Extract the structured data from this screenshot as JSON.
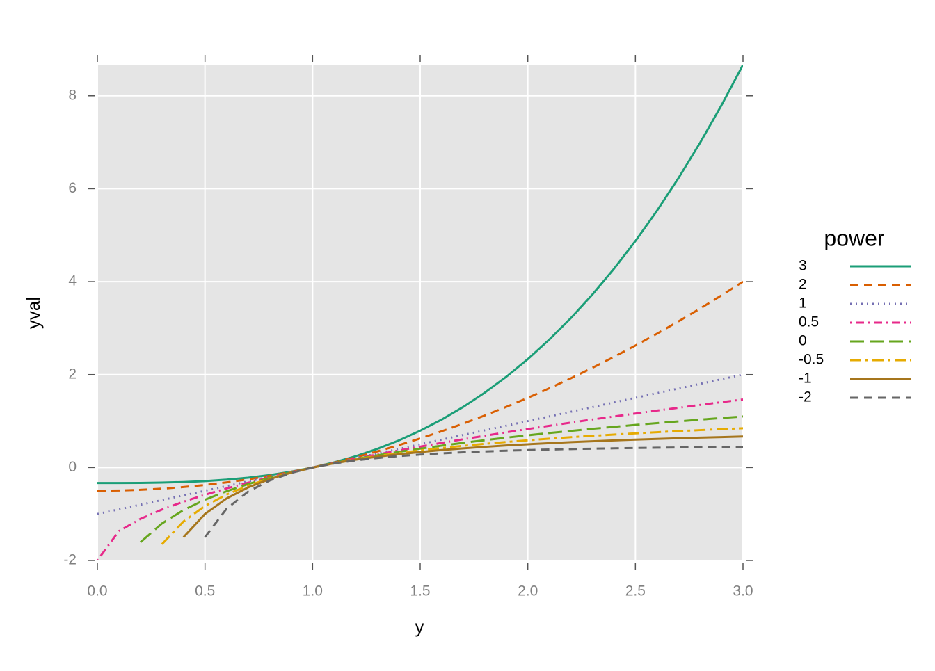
{
  "chart_data": {
    "type": "line",
    "x_label": "y",
    "y_label": "yval",
    "legend_title": "power",
    "x": [
      0,
      0.1,
      0.2,
      0.3,
      0.4,
      0.5,
      0.6,
      0.7,
      0.8,
      0.9,
      1.0,
      1.1,
      1.2,
      1.3,
      1.4,
      1.5,
      1.6,
      1.7,
      1.8,
      1.9,
      2.0,
      2.1,
      2.2,
      2.3,
      2.4,
      2.5,
      2.6,
      2.7,
      2.8,
      2.9,
      3.0
    ],
    "series": [
      {
        "name": "3",
        "color": "#1b9e77",
        "dash": "",
        "values": [
          -0.333,
          -0.333,
          -0.331,
          -0.324,
          -0.312,
          -0.292,
          -0.261,
          -0.219,
          -0.163,
          -0.09,
          0,
          0.11,
          0.243,
          0.399,
          0.581,
          0.792,
          1.032,
          1.304,
          1.611,
          1.953,
          2.333,
          2.754,
          3.216,
          3.722,
          4.275,
          4.875,
          5.525,
          6.228,
          6.984,
          7.796,
          8.667
        ]
      },
      {
        "name": "2",
        "color": "#d95f02",
        "dash": "12 8",
        "values": [
          -0.5,
          -0.495,
          -0.48,
          -0.455,
          -0.42,
          -0.375,
          -0.32,
          -0.255,
          -0.18,
          -0.095,
          0,
          0.105,
          0.22,
          0.345,
          0.48,
          0.625,
          0.78,
          0.945,
          1.12,
          1.305,
          1.5,
          1.705,
          1.92,
          2.145,
          2.38,
          2.625,
          2.88,
          3.145,
          3.42,
          3.705,
          4.0
        ]
      },
      {
        "name": "1",
        "color": "#7570b3",
        "dash": "2 6",
        "values": [
          -1,
          -0.9,
          -0.8,
          -0.7,
          -0.6,
          -0.5,
          -0.4,
          -0.3,
          -0.2,
          -0.1,
          0,
          0.1,
          0.2,
          0.3,
          0.4,
          0.5,
          0.6,
          0.7,
          0.8,
          0.9,
          1.0,
          1.1,
          1.2,
          1.3,
          1.4,
          1.5,
          1.6,
          1.7,
          1.8,
          1.9,
          2.0
        ]
      },
      {
        "name": "0.5",
        "color": "#e7298a",
        "dash": "2 6 12 6",
        "values": [
          -2,
          -1.368,
          -1.106,
          -0.905,
          -0.735,
          -0.586,
          -0.451,
          -0.327,
          -0.211,
          -0.103,
          0,
          0.098,
          0.191,
          0.28,
          0.366,
          0.449,
          0.53,
          0.608,
          0.683,
          0.757,
          0.828,
          0.898,
          0.966,
          1.033,
          1.098,
          1.162,
          1.225,
          1.286,
          1.347,
          1.406,
          1.464
        ]
      },
      {
        "name": "0",
        "color": "#66a61e",
        "dash": "20 8",
        "values": [
          null,
          null,
          -1.609,
          -1.204,
          -0.916,
          -0.693,
          -0.511,
          -0.357,
          -0.223,
          -0.105,
          0,
          0.095,
          0.182,
          0.262,
          0.336,
          0.405,
          0.47,
          0.531,
          0.588,
          0.642,
          0.693,
          0.742,
          0.788,
          0.833,
          0.875,
          0.916,
          0.956,
          0.993,
          1.03,
          1.065,
          1.099
        ]
      },
      {
        "name": "-0.5",
        "color": "#e6ab02",
        "dash": "16 6 4 6",
        "values": [
          null,
          null,
          null,
          -1.651,
          -1.162,
          -0.828,
          -0.582,
          -0.39,
          -0.236,
          -0.108,
          0,
          0.093,
          0.174,
          0.246,
          0.31,
          0.367,
          0.419,
          0.466,
          0.509,
          0.549,
          0.586,
          0.62,
          0.652,
          0.681,
          0.709,
          0.735,
          0.76,
          0.783,
          0.805,
          0.826,
          0.845
        ]
      },
      {
        "name": "-1",
        "color": "#a6761d",
        "dash": "",
        "values": [
          null,
          null,
          null,
          null,
          -1.5,
          -1.0,
          -0.667,
          -0.429,
          -0.25,
          -0.111,
          0,
          0.091,
          0.167,
          0.231,
          0.286,
          0.333,
          0.375,
          0.412,
          0.444,
          0.474,
          0.5,
          0.524,
          0.545,
          0.565,
          0.583,
          0.6,
          0.615,
          0.63,
          0.643,
          0.655,
          0.667
        ]
      },
      {
        "name": "-2",
        "color": "#666666",
        "dash": "12 8",
        "values": [
          null,
          null,
          null,
          null,
          null,
          -1.5,
          -0.889,
          -0.52,
          -0.281,
          -0.117,
          0,
          0.087,
          0.153,
          0.204,
          0.245,
          0.278,
          0.305,
          0.327,
          0.346,
          0.361,
          0.375,
          0.387,
          0.397,
          0.405,
          0.413,
          0.42,
          0.426,
          0.431,
          0.436,
          0.441,
          0.444
        ]
      }
    ],
    "xlim": [
      0,
      3
    ],
    "ylim": [
      -2,
      8.67
    ],
    "xticks": [
      {
        "value": 0,
        "label": "0.0"
      },
      0.5,
      {
        "value": 1,
        "label": "1.0"
      },
      1.5,
      {
        "value": 2,
        "label": "2.0"
      },
      2.5,
      {
        "value": 3,
        "label": "3.0"
      }
    ],
    "yticks": [
      -2,
      0,
      2,
      4,
      6,
      8
    ],
    "grid": true,
    "panel_color": "#e5e5e5",
    "legend_position": "right"
  }
}
